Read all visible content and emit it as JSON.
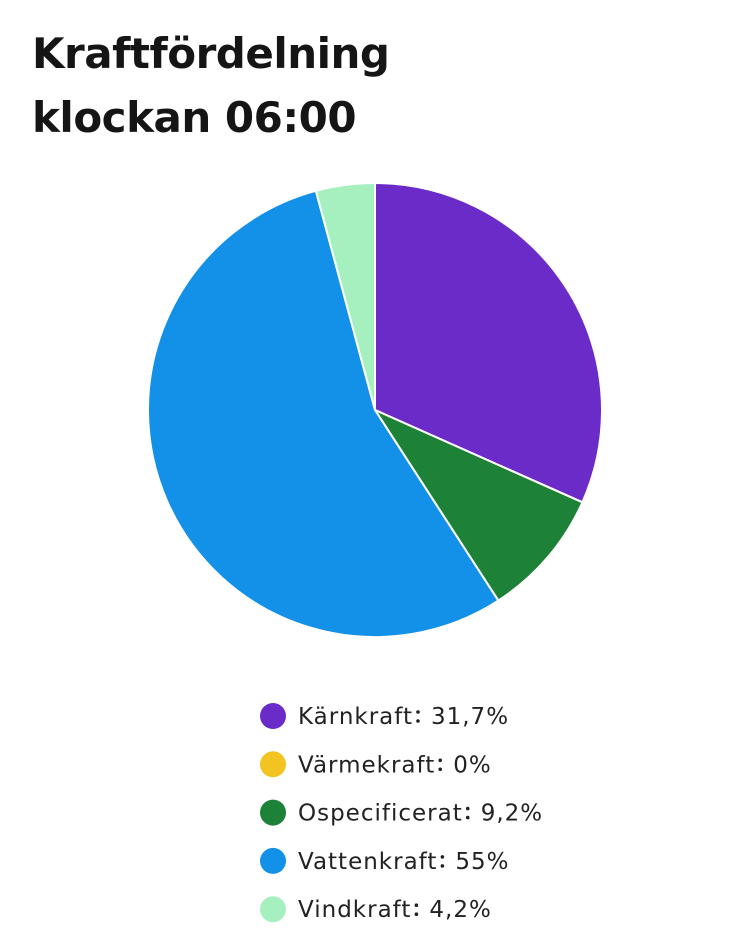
{
  "chart_data": {
    "type": "pie",
    "title": "Kraftfördelning klockan 06:00",
    "categories": [
      "Kärnkraft",
      "Värmekraft",
      "Ospecificerat",
      "Vattenkraft",
      "Vindkraft"
    ],
    "values": [
      31.7,
      0,
      9.2,
      55,
      4.2
    ],
    "value_labels": [
      "31,7%",
      "0%",
      "9,2%",
      "55%",
      "4,2%"
    ],
    "colors": [
      "#6a2bc9",
      "#f2c321",
      "#1e8138",
      "#1391e8",
      "#a6f0bf"
    ]
  }
}
